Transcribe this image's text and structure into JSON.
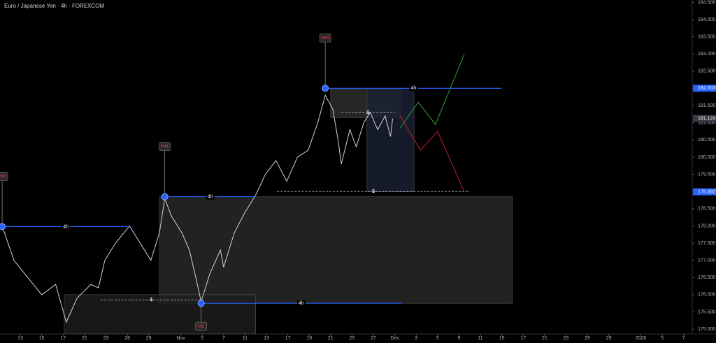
{
  "chart_data": {
    "type": "line",
    "title": "Euro / Japanese Yen · 4h · FOREXCOM",
    "color": "#d1d4dc",
    "x": [
      -1.7,
      -0.6,
      0.7,
      2.0,
      3.3,
      4.3,
      5.3,
      6.6,
      7.3,
      7.9,
      8.9,
      10.2,
      11.2,
      12.2,
      13.0,
      13.5,
      14.1,
      15.1,
      15.8,
      16.4,
      16.9,
      17.7,
      18.7,
      19.0,
      20.0,
      21.0,
      22.0,
      22.9,
      23.9,
      24.9,
      25.9,
      26.9,
      27.8,
      28.5,
      29.2,
      29.7,
      30.0,
      30.8,
      31.4,
      32.1,
      32.7,
      33.4,
      34.1,
      34.6,
      34.8
    ],
    "values": [
      178.0,
      177.0,
      176.5,
      176.0,
      176.3,
      175.2,
      175.9,
      176.3,
      176.2,
      177.0,
      177.5,
      178.0,
      177.5,
      177.0,
      177.8,
      178.8,
      178.3,
      177.8,
      177.3,
      176.5,
      175.8,
      176.6,
      177.3,
      176.8,
      177.8,
      178.4,
      178.9,
      179.5,
      179.9,
      179.3,
      180.0,
      180.2,
      181.0,
      181.8,
      181.4,
      180.5,
      179.8,
      180.8,
      180.3,
      181.0,
      181.3,
      180.8,
      181.2,
      180.6,
      181.124
    ],
    "xlim": [
      -1.9,
      62.8
    ],
    "ylim": [
      174.86,
      184.57
    ],
    "xticks": [
      {
        "value": 0,
        "label": "13"
      },
      {
        "value": 2,
        "label": "15"
      },
      {
        "value": 4,
        "label": "17"
      },
      {
        "value": 6,
        "label": "21"
      },
      {
        "value": 8,
        "label": "23"
      },
      {
        "value": 10,
        "label": "26"
      },
      {
        "value": 12,
        "label": "29"
      },
      {
        "value": 15,
        "label": "Nov"
      },
      {
        "value": 17,
        "label": "5"
      },
      {
        "value": 19,
        "label": "7"
      },
      {
        "value": 21,
        "label": "11"
      },
      {
        "value": 23,
        "label": "13"
      },
      {
        "value": 25,
        "label": "17"
      },
      {
        "value": 27,
        "label": "19"
      },
      {
        "value": 29,
        "label": "21"
      },
      {
        "value": 31,
        "label": "25"
      },
      {
        "value": 33,
        "label": "27"
      },
      {
        "value": 35,
        "label": "Dec"
      },
      {
        "value": 37,
        "label": "3"
      },
      {
        "value": 39,
        "label": "5"
      },
      {
        "value": 41,
        "label": "9"
      },
      {
        "value": 43,
        "label": "11"
      },
      {
        "value": 45,
        "label": "15"
      },
      {
        "value": 47,
        "label": "17"
      },
      {
        "value": 49,
        "label": "21"
      },
      {
        "value": 51,
        "label": "23"
      },
      {
        "value": 53,
        "label": "25"
      },
      {
        "value": 55,
        "label": "29"
      },
      {
        "value": 58,
        "label": "2026"
      },
      {
        "value": 60,
        "label": "5"
      },
      {
        "value": 62,
        "label": "7"
      }
    ],
    "yticks": [
      {
        "value": 175,
        "label": "175.000"
      },
      {
        "value": 175.5,
        "label": "175.500"
      },
      {
        "value": 176,
        "label": "176.000"
      },
      {
        "value": 176.5,
        "label": "176.500"
      },
      {
        "value": 177,
        "label": "177.000"
      },
      {
        "value": 177.5,
        "label": "177.500"
      },
      {
        "value": 178,
        "label": "178.000"
      },
      {
        "value": 178.5,
        "label": "178.500"
      },
      {
        "value": 179,
        "label": "179.000"
      },
      {
        "value": 179.5,
        "label": "179.500"
      },
      {
        "value": 180,
        "label": "180.000"
      },
      {
        "value": 180.5,
        "label": "180.500"
      },
      {
        "value": 181,
        "label": "181.000"
      },
      {
        "value": 181.5,
        "label": "181.500"
      },
      {
        "value": 182,
        "label": "182.000"
      },
      {
        "value": 182.5,
        "label": "182.500"
      },
      {
        "value": 183,
        "label": "183.000"
      },
      {
        "value": 183.5,
        "label": "183.500"
      },
      {
        "value": 184,
        "label": "184.000"
      },
      {
        "value": 184.5,
        "label": "184.500"
      }
    ],
    "zones": [
      {
        "range": [
          175.75,
          178.85
        ],
        "x": [
          13.0,
          46.0
        ],
        "color": "#2a2a2a"
      },
      {
        "range": [
          174.86,
          176.0
        ],
        "x": [
          4.1,
          22.0
        ],
        "color": "#1e1e1e"
      },
      {
        "range": [
          181.15,
          182.0
        ],
        "x": [
          29.0,
          35.6
        ],
        "color": "#2f2f2f"
      },
      {
        "range": [
          178.99,
          182.0
        ],
        "x": [
          32.4,
          36.8
        ],
        "color": "#1a2236"
      }
    ],
    "levels": [
      {
        "value": 182.003,
        "x": [
          28.5,
          45.0
        ],
        "label": "4h",
        "color": "#2962ff"
      },
      {
        "value": 178.85,
        "x": [
          13.5,
          22.0
        ],
        "label": "4h",
        "color": "#2962ff"
      },
      {
        "value": 177.98,
        "x": [
          -1.7,
          10.2
        ],
        "label": "4h",
        "color": "#2962ff"
      },
      {
        "value": 175.75,
        "x": [
          16.9,
          35.6
        ],
        "label": "4h",
        "color": "#2962ff"
      }
    ],
    "liquidity": [
      {
        "value": 181.3,
        "x": [
          30.0,
          35.0
        ],
        "label": "$"
      },
      {
        "value": 179.0,
        "x": [
          24.0,
          42.0
        ],
        "label": "$"
      },
      {
        "value": 175.85,
        "x": [
          7.5,
          17.0
        ],
        "label": "$"
      }
    ],
    "pivots": [
      {
        "x": 28.5,
        "value": 182.003,
        "label": "HH"
      },
      {
        "x": 13.5,
        "value": 178.85,
        "label": "HH"
      },
      {
        "x": -1.7,
        "value": 177.98,
        "label": "HH"
      },
      {
        "x": 16.9,
        "value": 175.75,
        "label": "HL"
      }
    ],
    "projections": [
      {
        "color": "#2e9e3f",
        "x": [
          35.5,
          37.2,
          38.8,
          41.5
        ],
        "values": [
          180.85,
          181.6,
          180.95,
          183.0
        ]
      },
      {
        "color": "#c2202f",
        "x": [
          35.5,
          37.4,
          39.0,
          41.5
        ],
        "values": [
          181.2,
          180.2,
          180.75,
          178.99
        ]
      }
    ],
    "price_labels": [
      {
        "value": 182.003,
        "color": "#2962ff"
      },
      {
        "value": 181.124,
        "color": "#363a45"
      },
      {
        "value": 178.992,
        "color": "#2962ff"
      }
    ]
  }
}
